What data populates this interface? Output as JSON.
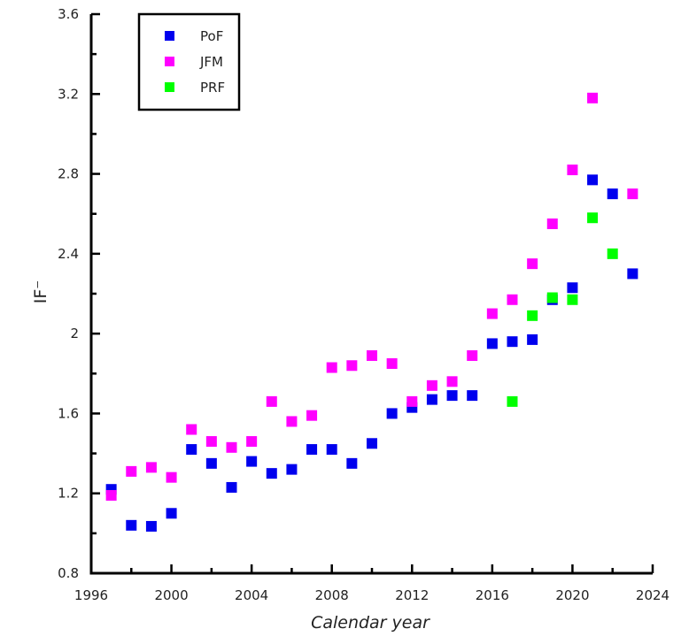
{
  "chart_data": {
    "type": "scatter",
    "title": "",
    "xlabel": "Calendar year",
    "ylabel": "IF⁻",
    "xlim": [
      1996,
      2024
    ],
    "ylim": [
      0.8,
      3.6
    ],
    "xticks": [
      1996,
      2000,
      2004,
      2008,
      2012,
      2016,
      2020,
      2024
    ],
    "yticks": [
      0.8,
      1.2,
      1.6,
      2,
      2.4,
      2.8,
      3.2,
      3.6
    ],
    "ytick_labels": [
      "0.8",
      "1.2",
      "1.6",
      "2",
      "2.4",
      "2.8",
      "3.2",
      "3.6"
    ],
    "grid": false,
    "legend_position": "top-left",
    "series": [
      {
        "name": "PoF",
        "color": "#0000ee",
        "x": [
          1997,
          1998,
          1999,
          2000,
          2001,
          2002,
          2003,
          2004,
          2005,
          2006,
          2007,
          2008,
          2009,
          2010,
          2011,
          2012,
          2013,
          2014,
          2015,
          2016,
          2017,
          2018,
          2019,
          2020,
          2021,
          2022,
          2023
        ],
        "y": [
          1.22,
          1.04,
          1.035,
          1.1,
          1.42,
          1.35,
          1.23,
          1.36,
          1.3,
          1.32,
          1.42,
          1.42,
          1.35,
          1.45,
          1.6,
          1.63,
          1.67,
          1.69,
          1.69,
          1.95,
          1.96,
          1.97,
          2.17,
          2.23,
          2.77,
          2.7,
          2.3
        ]
      },
      {
        "name": "JFM",
        "color": "#ff00ff",
        "x": [
          1997,
          1998,
          1999,
          2000,
          2001,
          2002,
          2003,
          2004,
          2005,
          2006,
          2007,
          2008,
          2009,
          2010,
          2011,
          2012,
          2013,
          2014,
          2015,
          2016,
          2017,
          2018,
          2019,
          2020,
          2021,
          2023
        ],
        "y": [
          1.19,
          1.31,
          1.33,
          1.28,
          1.52,
          1.46,
          1.43,
          1.46,
          1.66,
          1.56,
          1.59,
          1.83,
          1.84,
          1.89,
          1.85,
          1.66,
          1.74,
          1.76,
          1.89,
          2.1,
          2.17,
          2.35,
          2.55,
          2.82,
          3.18,
          2.7
        ]
      },
      {
        "name": "PRF",
        "color": "#00ff00",
        "x": [
          2017,
          2018,
          2019,
          2020,
          2021,
          2022
        ],
        "y": [
          1.66,
          2.09,
          2.18,
          2.17,
          2.58,
          2.4
        ]
      }
    ]
  }
}
